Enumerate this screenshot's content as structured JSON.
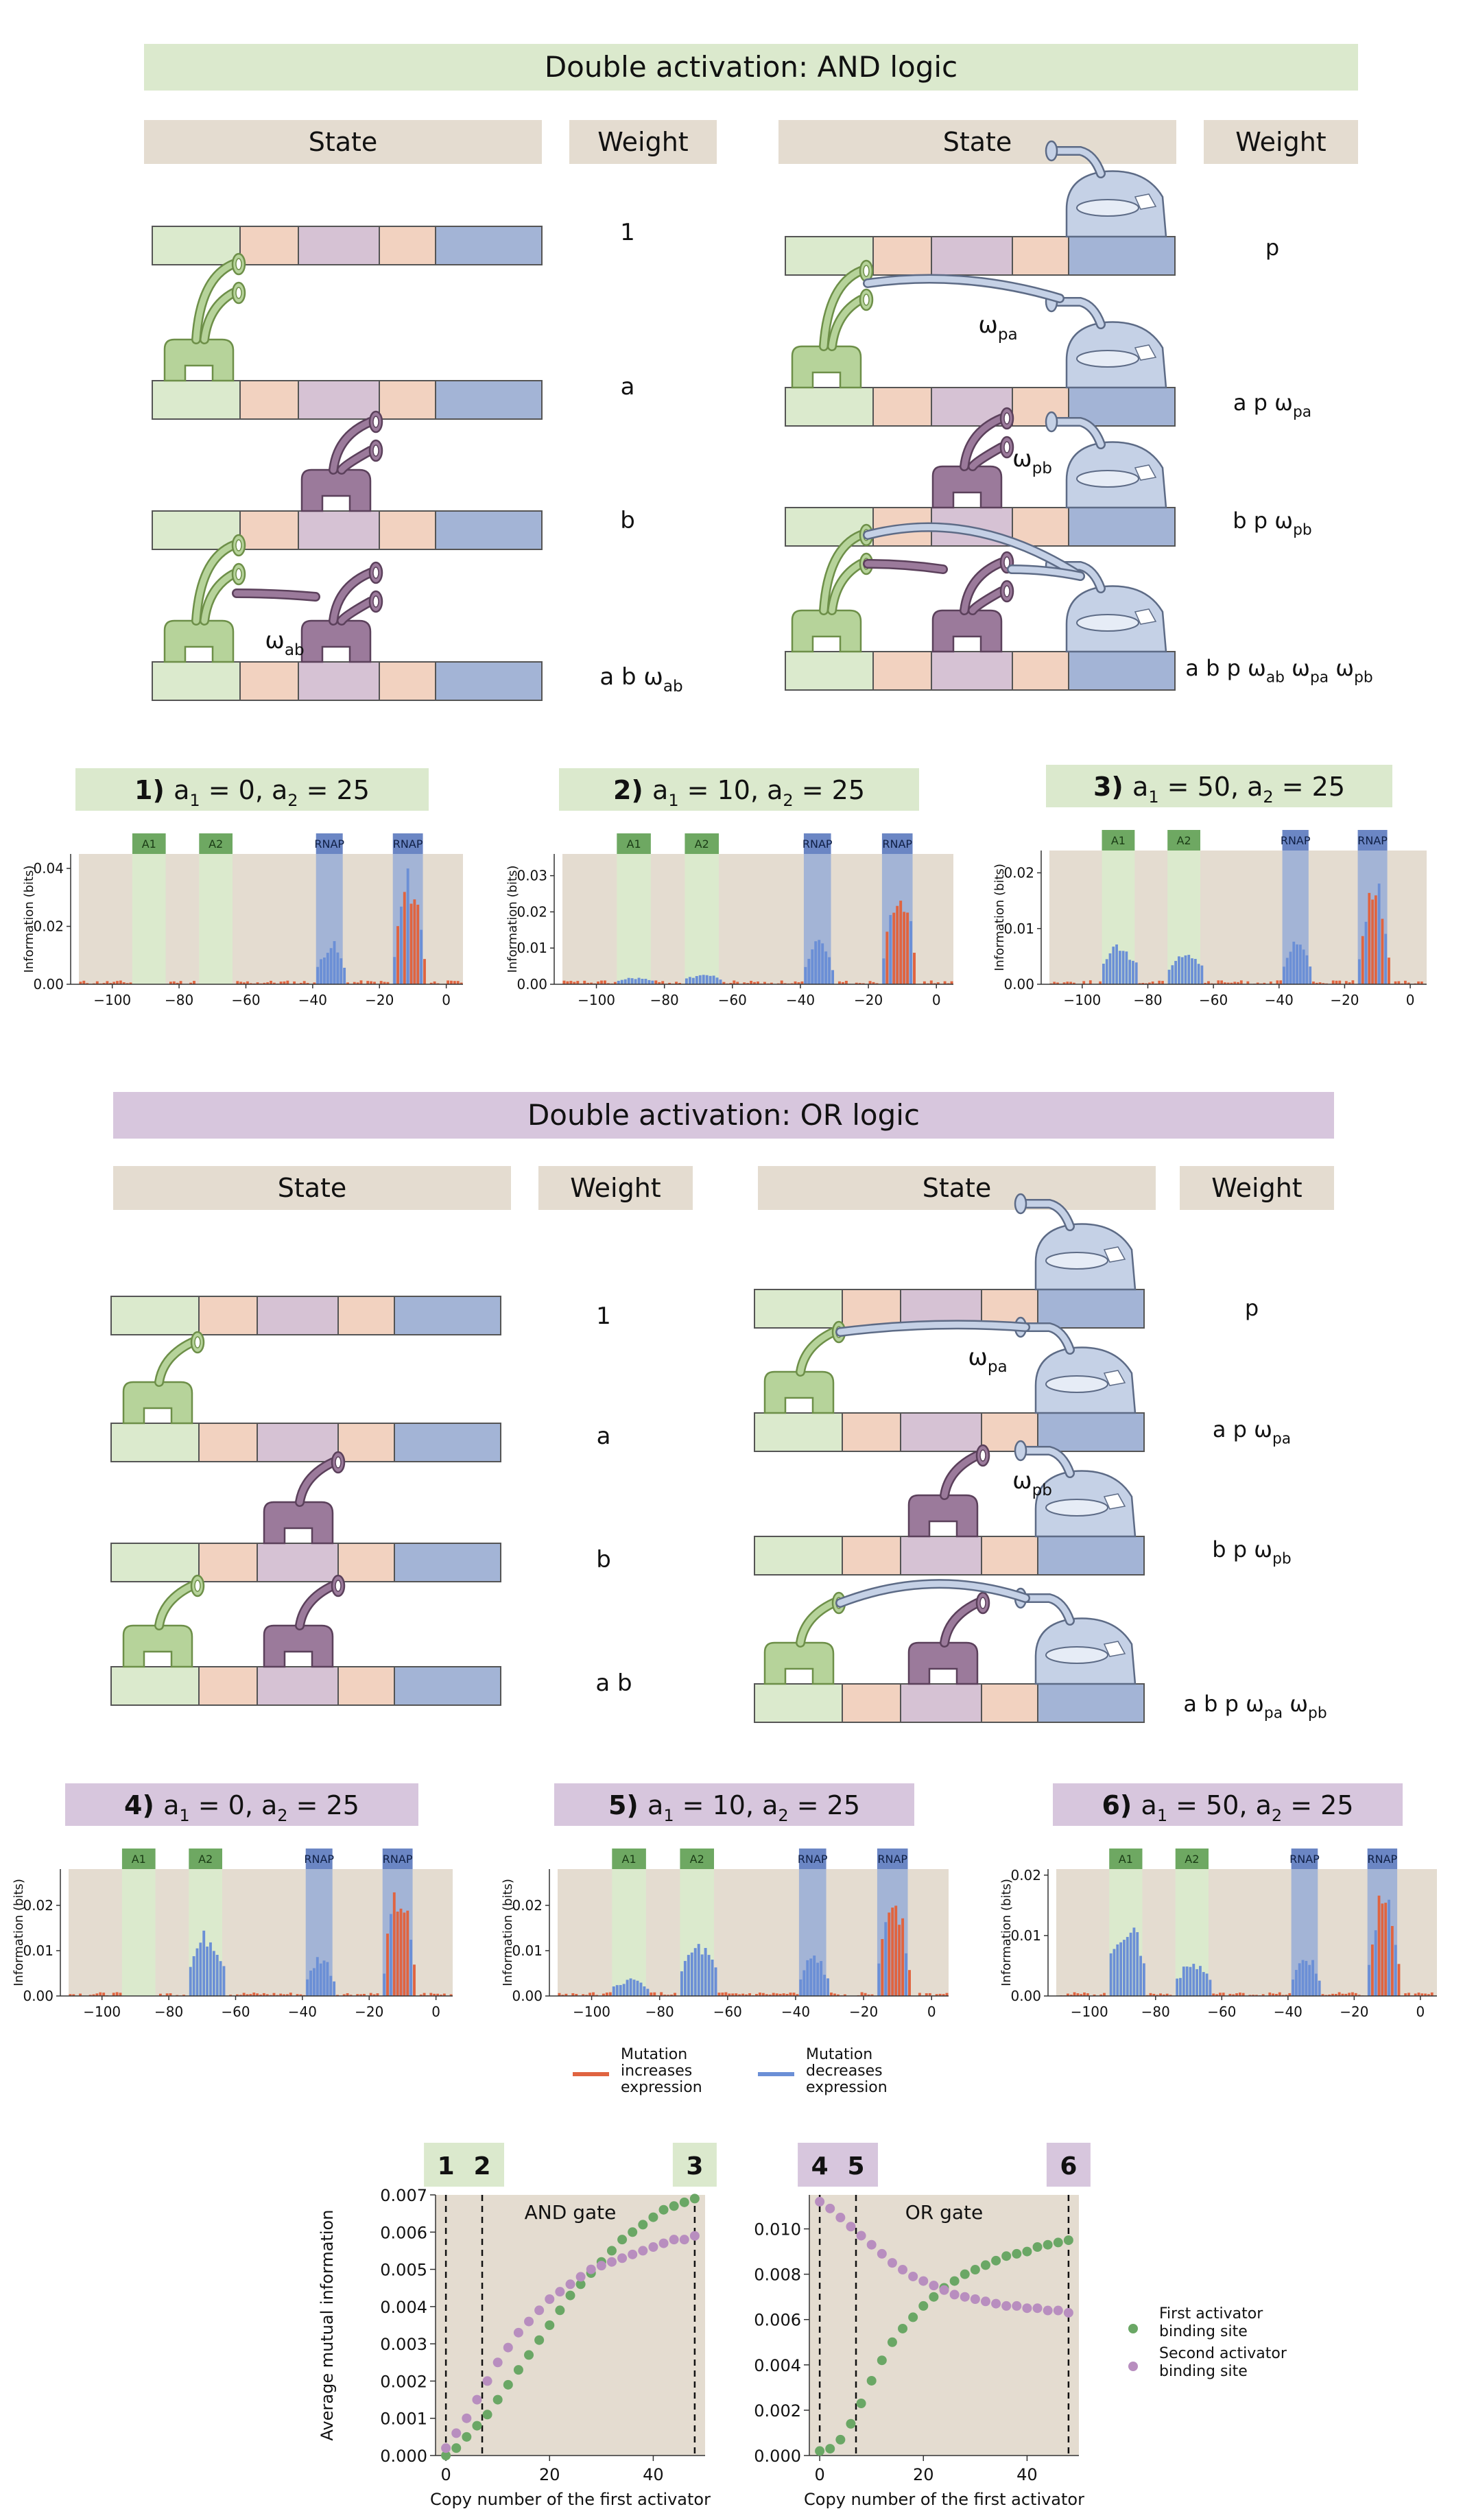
{
  "colors": {
    "green_header": "#dbe9cd",
    "purple_header": "#d7c6dd",
    "tan": "#e4dcd0",
    "act_green": "#b6d39a",
    "act_green_dark": "#6d8f48",
    "act_purple": "#9b7a9b",
    "act_purple_dark": "#5b405b",
    "rnap": "#c5d1e6",
    "rnap_dark": "#5d6b86",
    "seg_green": "#dbeacd",
    "seg_peach": "#f2d2c0",
    "seg_lilac": "#d6c2d4",
    "seg_blue": "#a3b4d6",
    "mut_up": "#e06440",
    "mut_down": "#6b8fd6",
    "dot_green": "#6aa765",
    "dot_purple": "#b88ebf"
  },
  "and_section": {
    "title": "Double activation: AND logic",
    "headers": [
      "State",
      "Weight",
      "State",
      "Weight"
    ],
    "weights_left": [
      "1",
      "a",
      "b",
      "a b ω_ab"
    ],
    "weights_right": [
      "p",
      "a p ω_pa",
      "b p ω_pb",
      "a b p ω_ab ω_pa ω_pb"
    ],
    "interaction_labels": [
      "ω_pa",
      "ω_pb",
      "ω_ab"
    ]
  },
  "or_section": {
    "title": "Double activation: OR logic",
    "headers": [
      "State",
      "Weight",
      "State",
      "Weight"
    ],
    "weights_left": [
      "1",
      "a",
      "b",
      "a b"
    ],
    "weights_right": [
      "p",
      "a p ω_pa",
      "b p ω_pb",
      "a b p ω_pa ω_pb"
    ],
    "interaction_labels": [
      "ω_pa",
      "ω_pb"
    ]
  },
  "panels": [
    {
      "num": "1)",
      "a1": "0",
      "a2": "25",
      "ymax": 0.045,
      "ticks": [
        "0.00",
        "0.02",
        "0.04"
      ],
      "tickvals": [
        0,
        0.02,
        0.04
      ],
      "a1h": 0.0,
      "a2h": 0.0
    },
    {
      "num": "2)",
      "a1": "10",
      "a2": "25",
      "ymax": 0.036,
      "ticks": [
        "0.00",
        "0.01",
        "0.02",
        "0.03"
      ],
      "tickvals": [
        0,
        0.01,
        0.02,
        0.03
      ],
      "a1h": 0.002,
      "a2h": 0.003
    },
    {
      "num": "3)",
      "a1": "50",
      "a2": "25",
      "ymax": 0.024,
      "ticks": [
        "0.00",
        "0.01",
        "0.02"
      ],
      "tickvals": [
        0,
        0.01,
        0.02
      ],
      "a1h": 0.0075,
      "a2h": 0.0065
    },
    {
      "num": "4)",
      "a1": "0",
      "a2": "25",
      "ymax": 0.028,
      "ticks": [
        "0.00",
        "0.01",
        "0.02"
      ],
      "tickvals": [
        0,
        0.01,
        0.02
      ],
      "a1h": 0.0,
      "a2h": 0.015
    },
    {
      "num": "5)",
      "a1": "10",
      "a2": "25",
      "ymax": 0.028,
      "ticks": [
        "0.00",
        "0.01",
        "0.02"
      ],
      "tickvals": [
        0,
        0.01,
        0.02
      ],
      "a1h": 0.004,
      "a2h": 0.012
    },
    {
      "num": "6)",
      "a1": "50",
      "a2": "25",
      "ymax": 0.021,
      "ticks": [
        "0.00",
        "0.01",
        "0.02"
      ],
      "tickvals": [
        0,
        0.01,
        0.02
      ],
      "a1h": 0.013,
      "a2h": 0.006
    }
  ],
  "panel_common": {
    "ylabel": "Information (bits)",
    "xticks": [
      "−100",
      "−80",
      "−60",
      "−40",
      "−20",
      "0"
    ],
    "box_labels": [
      "A1",
      "A2",
      "RNAP",
      "RNAP"
    ]
  },
  "legend": {
    "up": "Mutation increases expression",
    "up_lines": [
      "Mutation",
      "increases",
      "expression"
    ],
    "down_lines": [
      "Mutation",
      "decreases",
      "expression"
    ]
  },
  "chart_data": [
    {
      "type": "scatter",
      "title": "AND gate",
      "xlabel": "Copy number of the first activator",
      "ylabel": "Average mutual information",
      "xlim": [
        -2,
        50
      ],
      "ylim": [
        0,
        0.007
      ],
      "xticks": [
        "0",
        "20",
        "40"
      ],
      "yticks": [
        "0.000",
        "0.001",
        "0.002",
        "0.003",
        "0.004",
        "0.005",
        "0.006",
        "0.007"
      ],
      "markers": [
        "1",
        "2",
        "3"
      ],
      "series": [
        {
          "name": "First activator binding site",
          "x": [
            0,
            2,
            4,
            6,
            8,
            10,
            12,
            14,
            16,
            18,
            20,
            22,
            24,
            26,
            28,
            30,
            32,
            34,
            36,
            38,
            40,
            42,
            44,
            46,
            48
          ],
          "y": [
            0.0,
            0.0002,
            0.0005,
            0.0008,
            0.0011,
            0.0015,
            0.0019,
            0.0023,
            0.0027,
            0.0031,
            0.0035,
            0.0039,
            0.0043,
            0.0046,
            0.0049,
            0.0052,
            0.0055,
            0.0058,
            0.006,
            0.0062,
            0.0064,
            0.0066,
            0.0067,
            0.0068,
            0.0069
          ]
        },
        {
          "name": "Second activator binding site",
          "x": [
            0,
            2,
            4,
            6,
            8,
            10,
            12,
            14,
            16,
            18,
            20,
            22,
            24,
            26,
            28,
            30,
            32,
            34,
            36,
            38,
            40,
            42,
            44,
            46,
            48
          ],
          "y": [
            0.0002,
            0.0006,
            0.001,
            0.0015,
            0.002,
            0.0025,
            0.0029,
            0.0033,
            0.0036,
            0.0039,
            0.0042,
            0.0044,
            0.0046,
            0.0048,
            0.005,
            0.0051,
            0.0052,
            0.0053,
            0.0054,
            0.0055,
            0.0056,
            0.0057,
            0.0058,
            0.0058,
            0.0059
          ]
        }
      ]
    },
    {
      "type": "scatter",
      "title": "OR gate",
      "xlabel": "Copy number of the first activator",
      "ylabel": "",
      "xlim": [
        -2,
        50
      ],
      "ylim": [
        0,
        0.0115
      ],
      "xticks": [
        "0",
        "20",
        "40"
      ],
      "yticks": [
        "0.000",
        "0.002",
        "0.004",
        "0.006",
        "0.008",
        "0.010"
      ],
      "markers": [
        "4",
        "5",
        "6"
      ],
      "series": [
        {
          "name": "First activator binding site",
          "x": [
            0,
            2,
            4,
            6,
            8,
            10,
            12,
            14,
            16,
            18,
            20,
            22,
            24,
            26,
            28,
            30,
            32,
            34,
            36,
            38,
            40,
            42,
            44,
            46,
            48
          ],
          "y": [
            0.0002,
            0.0003,
            0.0007,
            0.0014,
            0.0023,
            0.0033,
            0.0042,
            0.005,
            0.0056,
            0.0061,
            0.0066,
            0.007,
            0.0074,
            0.0077,
            0.008,
            0.0082,
            0.0084,
            0.0086,
            0.0088,
            0.0089,
            0.009,
            0.0092,
            0.0093,
            0.0094,
            0.0095
          ]
        },
        {
          "name": "Second activator binding site",
          "x": [
            0,
            2,
            4,
            6,
            8,
            10,
            12,
            14,
            16,
            18,
            20,
            22,
            24,
            26,
            28,
            30,
            32,
            34,
            36,
            38,
            40,
            42,
            44,
            46,
            48
          ],
          "y": [
            0.0112,
            0.0109,
            0.0105,
            0.0101,
            0.0097,
            0.0093,
            0.0089,
            0.0085,
            0.0082,
            0.0079,
            0.0077,
            0.0075,
            0.0073,
            0.0071,
            0.007,
            0.0069,
            0.0068,
            0.0067,
            0.0066,
            0.0066,
            0.0065,
            0.0065,
            0.0064,
            0.0064,
            0.0063
          ]
        }
      ],
      "legend_entries": [
        "First activator binding site",
        "Second activator binding site"
      ],
      "legend_lines": [
        [
          "First activator",
          "binding site"
        ],
        [
          "Second activator",
          "binding site"
        ]
      ]
    }
  ]
}
